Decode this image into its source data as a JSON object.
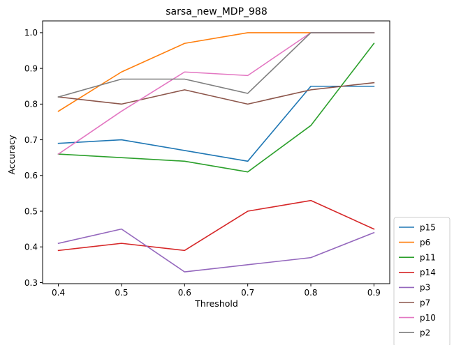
{
  "chart_data": {
    "type": "line",
    "title": "sarsa_new_MDP_988",
    "xlabel": "Threshold",
    "ylabel": "Accuracy",
    "x": [
      0.4,
      0.5,
      0.6,
      0.7,
      0.8,
      0.9
    ],
    "x_ticks": [
      "0.4",
      "0.5",
      "0.6",
      "0.7",
      "0.8",
      "0.9"
    ],
    "y_ticks": [
      "0.3",
      "0.4",
      "0.5",
      "0.6",
      "0.7",
      "0.8",
      "0.9",
      "1.0"
    ],
    "xlim": [
      0.375,
      0.925
    ],
    "ylim": [
      0.297,
      1.033
    ],
    "grid": false,
    "legend_position": "lower-right outside",
    "series": [
      {
        "name": "p15",
        "color": "#1f77b4",
        "values": [
          0.69,
          0.7,
          0.67,
          0.64,
          0.85,
          0.85
        ]
      },
      {
        "name": "p6",
        "color": "#ff7f0e",
        "values": [
          0.78,
          0.89,
          0.97,
          1.0,
          1.0,
          1.0
        ]
      },
      {
        "name": "p11",
        "color": "#2ca02c",
        "values": [
          0.66,
          0.65,
          0.64,
          0.61,
          0.74,
          0.97
        ]
      },
      {
        "name": "p14",
        "color": "#d62728",
        "values": [
          0.39,
          0.41,
          0.39,
          0.5,
          0.53,
          0.45
        ]
      },
      {
        "name": "p3",
        "color": "#9467bd",
        "values": [
          0.41,
          0.45,
          0.33,
          0.35,
          0.37,
          0.44
        ]
      },
      {
        "name": "p7",
        "color": "#8c564b",
        "values": [
          0.82,
          0.8,
          0.84,
          0.8,
          0.84,
          0.86
        ]
      },
      {
        "name": "p10",
        "color": "#e377c2",
        "values": [
          0.66,
          0.78,
          0.89,
          0.88,
          1.0,
          1.0
        ]
      },
      {
        "name": "p2",
        "color": "#7f7f7f",
        "values": [
          0.82,
          0.87,
          0.87,
          0.83,
          1.0,
          1.0
        ]
      }
    ]
  }
}
